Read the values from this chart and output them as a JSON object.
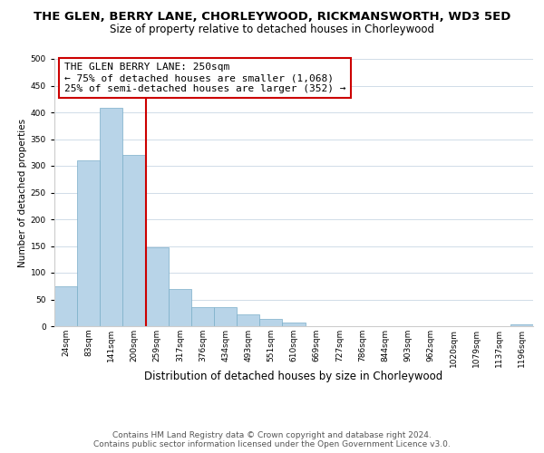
{
  "title": "THE GLEN, BERRY LANE, CHORLEYWOOD, RICKMANSWORTH, WD3 5ED",
  "subtitle": "Size of property relative to detached houses in Chorleywood",
  "xlabel": "Distribution of detached houses by size in Chorleywood",
  "ylabel": "Number of detached properties",
  "bin_labels": [
    "24sqm",
    "83sqm",
    "141sqm",
    "200sqm",
    "259sqm",
    "317sqm",
    "376sqm",
    "434sqm",
    "493sqm",
    "551sqm",
    "610sqm",
    "669sqm",
    "727sqm",
    "786sqm",
    "844sqm",
    "903sqm",
    "962sqm",
    "1020sqm",
    "1079sqm",
    "1137sqm",
    "1196sqm"
  ],
  "bar_heights": [
    74,
    311,
    408,
    320,
    148,
    70,
    36,
    36,
    22,
    13,
    6,
    0,
    0,
    0,
    0,
    0,
    0,
    0,
    0,
    0,
    3
  ],
  "bar_color": "#b8d4e8",
  "bar_edge_color": "#7aaec8",
  "vline_x_index": 4,
  "vline_color": "#cc0000",
  "annotation_line1": "THE GLEN BERRY LANE: 250sqm",
  "annotation_line2": "← 75% of detached houses are smaller (1,068)",
  "annotation_line3": "25% of semi-detached houses are larger (352) →",
  "annotation_box_color": "#ffffff",
  "annotation_box_edge": "#cc0000",
  "ylim": [
    0,
    500
  ],
  "yticks": [
    0,
    50,
    100,
    150,
    200,
    250,
    300,
    350,
    400,
    450,
    500
  ],
  "footer_line1": "Contains HM Land Registry data © Crown copyright and database right 2024.",
  "footer_line2": "Contains public sector information licensed under the Open Government Licence v3.0.",
  "title_fontsize": 9.5,
  "subtitle_fontsize": 8.5,
  "xlabel_fontsize": 8.5,
  "ylabel_fontsize": 7.5,
  "tick_fontsize": 6.5,
  "annotation_fontsize": 8,
  "footer_fontsize": 6.5,
  "grid_color": "#d0dce8"
}
